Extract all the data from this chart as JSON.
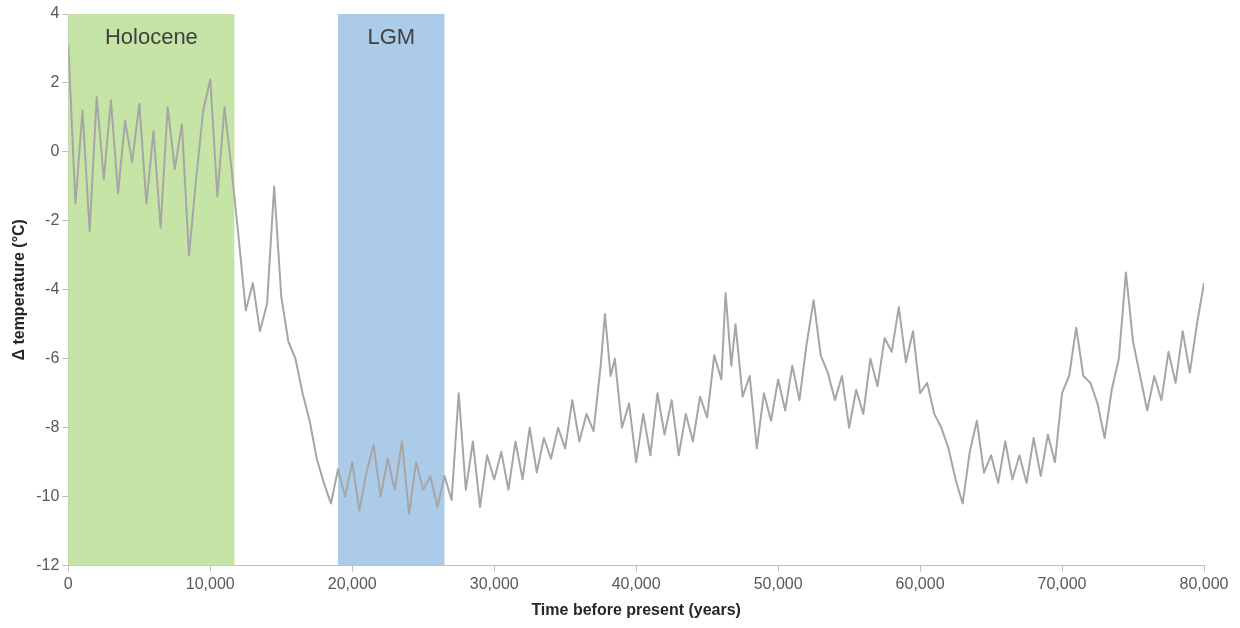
{
  "chart_data": {
    "type": "line",
    "xlabel": "Time before present (years)",
    "ylabel": "Δ temperature (°C)",
    "xlim": [
      0,
      80000
    ],
    "xticks": [
      0,
      {
        "value": 10000,
        "label": "10,000"
      },
      {
        "value": 20000,
        "label": "20,000"
      },
      {
        "value": 30000,
        "label": "30,000"
      },
      {
        "value": 40000,
        "label": "40,000"
      },
      {
        "value": 50000,
        "label": "50,000"
      },
      {
        "value": 60000,
        "label": "60,000"
      },
      {
        "value": 70000,
        "label": "70,000"
      },
      {
        "value": 80000,
        "label": "80,000"
      }
    ],
    "ylim": [
      -12,
      4
    ],
    "yticks": [
      -12,
      -10,
      -8,
      -6,
      -4,
      -2,
      0,
      2,
      4
    ],
    "bands": [
      {
        "axis": "x",
        "from": 0,
        "to": 11700,
        "label": "Holocene",
        "color": "#c6e4a5"
      },
      {
        "axis": "x",
        "from": 19000,
        "to": 26500,
        "label": "LGM",
        "color": "#abcbe9"
      }
    ],
    "series": [
      {
        "color": "#a6a6a6",
        "x": [
          0,
          500,
          1000,
          1500,
          2000,
          2500,
          3000,
          3500,
          4000,
          4500,
          5000,
          5500,
          6000,
          6500,
          7000,
          7500,
          8000,
          8500,
          9000,
          9500,
          10000,
          10500,
          11000,
          11500,
          12000,
          12500,
          13000,
          13500,
          14000,
          14500,
          15000,
          15500,
          16000,
          16500,
          17000,
          17500,
          18000,
          18500,
          19000,
          19500,
          20000,
          20500,
          21000,
          21500,
          22000,
          22500,
          23000,
          23500,
          24000,
          24500,
          25000,
          25500,
          26000,
          26500,
          27000,
          27500,
          28000,
          28500,
          29000,
          29500,
          30000,
          30500,
          31000,
          31500,
          32000,
          32500,
          33000,
          33500,
          34000,
          34500,
          35000,
          35500,
          36000,
          36500,
          37000,
          37500,
          37800,
          38200,
          38500,
          39000,
          39500,
          40000,
          40500,
          41000,
          41500,
          42000,
          42500,
          43000,
          43500,
          44000,
          44500,
          45000,
          45500,
          46000,
          46300,
          46700,
          47000,
          47500,
          48000,
          48500,
          49000,
          49500,
          50000,
          50500,
          51000,
          51500,
          52000,
          52500,
          53000,
          53500,
          54000,
          54500,
          55000,
          55500,
          56000,
          56500,
          57000,
          57500,
          58000,
          58500,
          59000,
          59500,
          60000,
          60500,
          61000,
          61500,
          62000,
          62500,
          63000,
          63500,
          64000,
          64500,
          65000,
          65500,
          66000,
          66500,
          67000,
          67500,
          68000,
          68500,
          69000,
          69500,
          70000,
          70500,
          71000,
          71500,
          72000,
          72500,
          73000,
          73500,
          74000,
          74500,
          75000,
          75500,
          76000,
          76500,
          77000,
          77500,
          78000,
          78500,
          79000,
          79500,
          80000
        ],
        "values": [
          3.1,
          -1.5,
          1.2,
          -2.3,
          1.6,
          -0.8,
          1.5,
          -1.2,
          0.9,
          -0.3,
          1.4,
          -1.5,
          0.6,
          -2.2,
          1.3,
          -0.5,
          0.8,
          -3.0,
          -0.8,
          1.2,
          2.1,
          -1.3,
          1.3,
          -0.5,
          -2.5,
          -4.6,
          -3.8,
          -5.2,
          -4.4,
          -1.0,
          -4.2,
          -5.5,
          -6.0,
          -7.0,
          -7.8,
          -8.9,
          -9.6,
          -10.2,
          -9.2,
          -10.0,
          -9.0,
          -10.4,
          -9.3,
          -8.5,
          -10.0,
          -8.9,
          -9.8,
          -8.4,
          -10.5,
          -9.0,
          -9.8,
          -9.4,
          -10.3,
          -9.4,
          -10.1,
          -7.0,
          -9.8,
          -8.4,
          -10.3,
          -8.8,
          -9.5,
          -8.7,
          -9.8,
          -8.4,
          -9.5,
          -8.0,
          -9.3,
          -8.3,
          -8.9,
          -8.0,
          -8.6,
          -7.2,
          -8.4,
          -7.6,
          -8.1,
          -6.2,
          -4.7,
          -6.5,
          -6.0,
          -8.0,
          -7.3,
          -9.0,
          -7.6,
          -8.8,
          -7.0,
          -8.2,
          -7.2,
          -8.8,
          -7.6,
          -8.4,
          -7.1,
          -7.7,
          -5.9,
          -6.6,
          -4.1,
          -6.2,
          -5.0,
          -7.1,
          -6.5,
          -8.6,
          -7.0,
          -7.8,
          -6.6,
          -7.5,
          -6.2,
          -7.2,
          -5.6,
          -4.3,
          -5.9,
          -6.4,
          -7.2,
          -6.5,
          -8.0,
          -6.9,
          -7.6,
          -6.0,
          -6.8,
          -5.4,
          -5.8,
          -4.5,
          -6.1,
          -5.2,
          -7.0,
          -6.7,
          -7.6,
          -8.0,
          -8.6,
          -9.5,
          -10.2,
          -8.7,
          -7.8,
          -9.3,
          -8.8,
          -9.6,
          -8.4,
          -9.5,
          -8.8,
          -9.6,
          -8.3,
          -9.4,
          -8.2,
          -9.0,
          -7.0,
          -6.5,
          -5.1,
          -6.5,
          -6.7,
          -7.3,
          -8.3,
          -6.9,
          -6.0,
          -3.5,
          -5.5,
          -6.5,
          -7.5,
          -6.5,
          -7.2,
          -5.8,
          -6.7,
          -5.2,
          -6.4,
          -5.0,
          -3.8
        ]
      }
    ]
  }
}
